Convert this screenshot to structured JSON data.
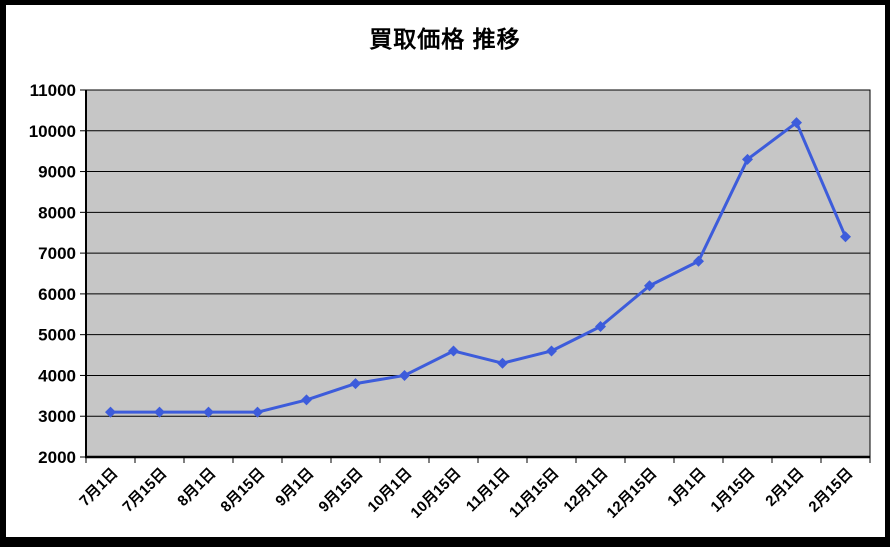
{
  "window": {
    "background_color": "#FFFFFF",
    "frame_color": "#000000"
  },
  "chart_data": {
    "type": "line",
    "title": "買取価格 推移",
    "categories": [
      "7月1日",
      "7月15日",
      "8月1日",
      "8月15日",
      "9月1日",
      "9月15日",
      "10月1日",
      "10月15日",
      "11月1日",
      "11月15日",
      "12月1日",
      "12月15日",
      "1月1日",
      "1月15日",
      "2月1日",
      "2月15日"
    ],
    "series": [
      {
        "values": [
          3100,
          3100,
          3100,
          3100,
          3400,
          3800,
          4000,
          4600,
          4300,
          4600,
          5200,
          6200,
          6800,
          9300,
          10200,
          7400
        ]
      }
    ],
    "xlabel": "",
    "ylabel": "",
    "ylim": [
      2000,
      11000
    ],
    "y_step": 1000,
    "y_ticks": [
      "11000",
      "10000",
      "9000",
      "8000",
      "7000",
      "6000",
      "5000",
      "4000",
      "3000",
      "2000"
    ],
    "grid": "horizontal-major",
    "legend": "none",
    "marker": "diamond",
    "line_color": "#3D5CDB",
    "marker_color": "#3D5CDB",
    "plot_bg": "#C6C6C6",
    "grid_color": "#000000",
    "axis_color": "#000000",
    "x_label_rotation_deg": -45
  }
}
